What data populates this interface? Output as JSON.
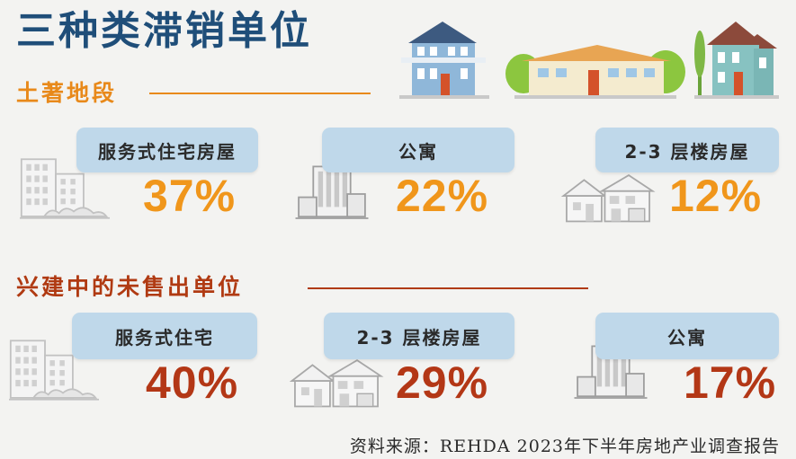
{
  "title": "三种类滞销单位",
  "sections": [
    {
      "heading": "土著地段",
      "items": [
        {
          "label": "服务式住宅房屋",
          "value": "37%",
          "icon": "apartment-buildings-icon"
        },
        {
          "label": "公寓",
          "value": "22%",
          "icon": "condominium-building-icon"
        },
        {
          "label": "2-3 层楼房屋",
          "value": "12%",
          "icon": "terrace-houses-icon"
        }
      ]
    },
    {
      "heading": "兴建中的未售出单位",
      "items": [
        {
          "label": "服务式住宅",
          "value": "40%",
          "icon": "apartment-buildings-icon"
        },
        {
          "label": "2-3 层楼房屋",
          "value": "29%",
          "icon": "terrace-houses-icon"
        },
        {
          "label": "公寓",
          "value": "17%",
          "icon": "condominium-building-icon"
        }
      ]
    }
  ],
  "source": "资料来源：REHDA 2023年下半年房地产业调查报告",
  "colors": {
    "title": "#1f4e79",
    "section1": "#e8891a",
    "section2": "#b03a12",
    "label_bg": "#bfd8ea"
  },
  "chart_data": {
    "type": "table",
    "title": "三种类滞销单位",
    "groups": [
      {
        "name": "土著地段",
        "categories": [
          "服务式住宅房屋",
          "公寓",
          "2-3 层楼房屋"
        ],
        "values": [
          37,
          22,
          12
        ],
        "unit": "%"
      },
      {
        "name": "兴建中的未售出单位",
        "categories": [
          "服务式住宅",
          "2-3 层楼房屋",
          "公寓"
        ],
        "values": [
          40,
          29,
          17
        ],
        "unit": "%"
      }
    ]
  }
}
